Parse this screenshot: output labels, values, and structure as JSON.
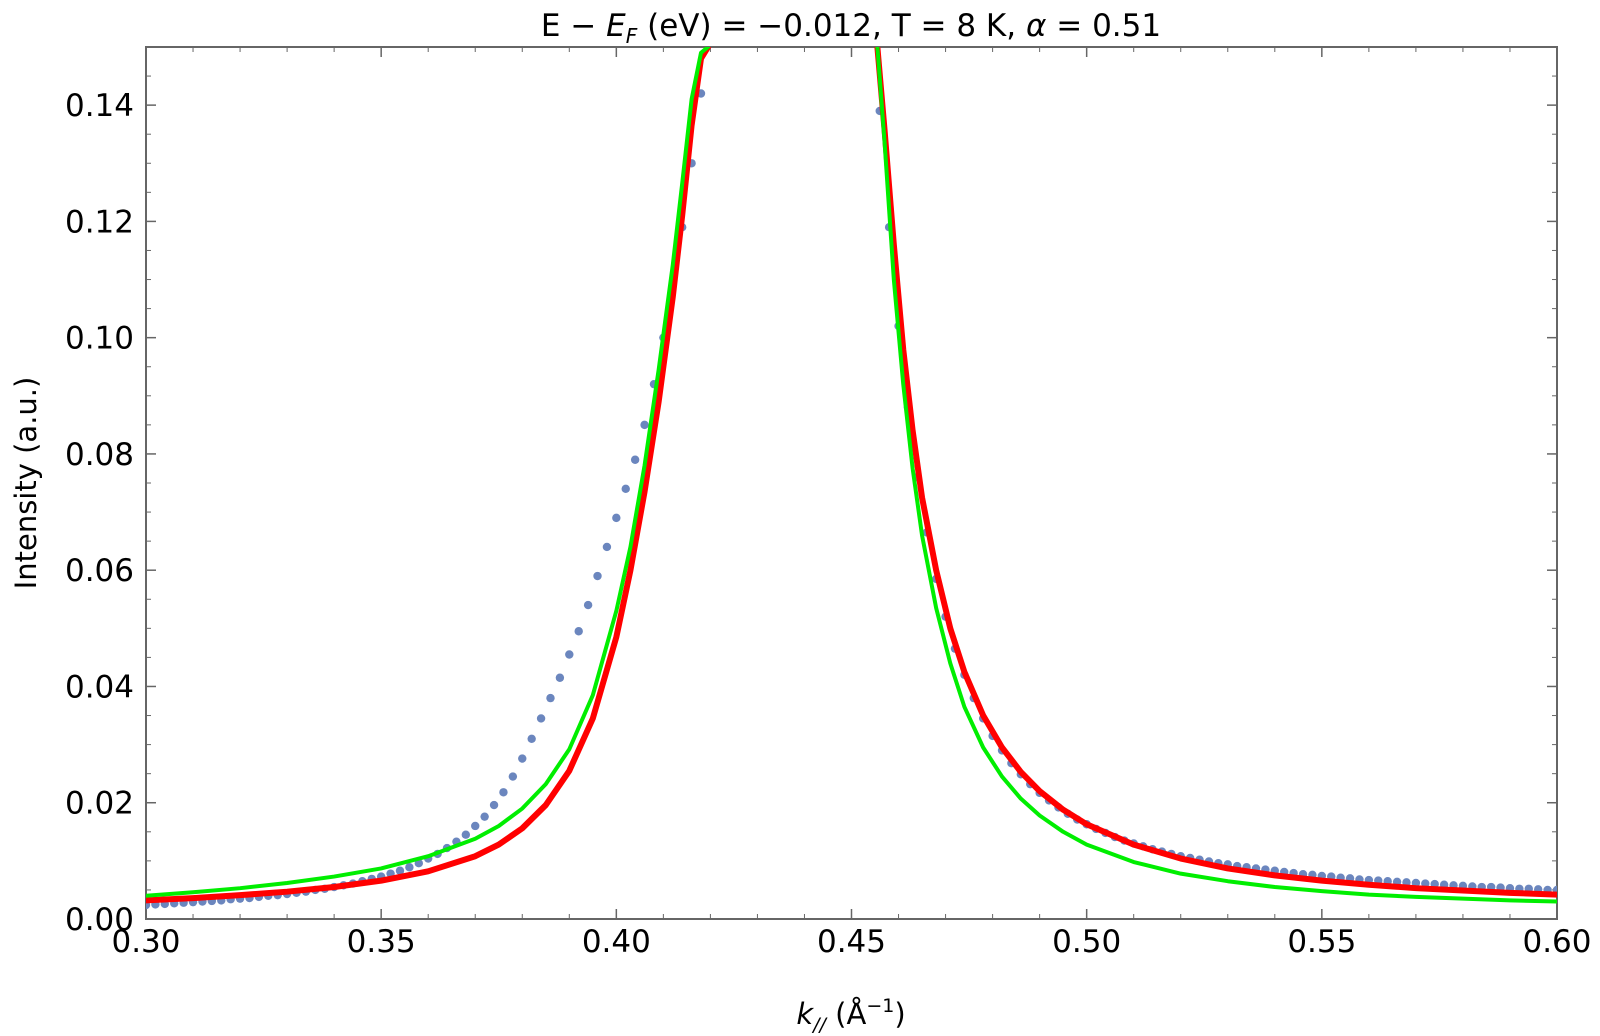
{
  "chart_data": {
    "type": "scatter",
    "title_parts": {
      "a": "E − ",
      "b": "E",
      "c": "F",
      "d": " (eV) = −0.012, T = 8 K, ",
      "e": "α",
      "f": " = 0.51"
    },
    "xlabel_parts": {
      "a": "k",
      "b": "//",
      "c": " (Å",
      "d": "−1",
      "e": ")"
    },
    "ylabel": "Intensity (a.u.)",
    "xlim": [
      0.3,
      0.6
    ],
    "ylim": [
      0.0,
      0.15
    ],
    "x_ticks": [
      {
        "value": 0.3,
        "label": "0.30"
      },
      {
        "value": 0.35,
        "label": "0.35"
      },
      {
        "value": 0.4,
        "label": "0.40"
      },
      {
        "value": 0.45,
        "label": "0.45"
      },
      {
        "value": 0.5,
        "label": "0.50"
      },
      {
        "value": 0.55,
        "label": "0.55"
      },
      {
        "value": 0.6,
        "label": "0.60"
      }
    ],
    "y_ticks": [
      {
        "value": 0.0,
        "label": "0.00"
      },
      {
        "value": 0.02,
        "label": "0.02"
      },
      {
        "value": 0.04,
        "label": "0.04"
      },
      {
        "value": 0.06,
        "label": "0.06"
      },
      {
        "value": 0.08,
        "label": "0.08"
      },
      {
        "value": 0.1,
        "label": "0.10"
      },
      {
        "value": 0.12,
        "label": "0.12"
      },
      {
        "value": 0.14,
        "label": "0.14"
      }
    ],
    "grid": false,
    "colors": {
      "points": "#6b86be",
      "red_curve": "#ff0000",
      "green_curve": "#00ee00",
      "frame": "#666666"
    },
    "series": [
      {
        "kind": "points",
        "x": [
          0.3,
          0.302,
          0.304,
          0.306,
          0.308,
          0.31,
          0.312,
          0.314,
          0.316,
          0.318,
          0.32,
          0.322,
          0.324,
          0.326,
          0.328,
          0.33,
          0.332,
          0.334,
          0.336,
          0.338,
          0.34,
          0.342,
          0.344,
          0.346,
          0.348,
          0.35,
          0.352,
          0.354,
          0.356,
          0.358,
          0.36,
          0.362,
          0.364,
          0.366,
          0.368,
          0.37,
          0.372,
          0.374,
          0.376,
          0.378,
          0.38,
          0.382,
          0.384,
          0.386,
          0.388,
          0.39,
          0.392,
          0.394,
          0.396,
          0.398,
          0.4,
          0.402,
          0.404,
          0.406,
          0.408,
          0.41,
          0.412,
          0.414,
          0.416,
          0.418,
          0.456,
          0.458,
          0.46,
          0.462,
          0.464,
          0.466,
          0.468,
          0.47,
          0.472,
          0.474,
          0.476,
          0.478,
          0.48,
          0.482,
          0.484,
          0.486,
          0.488,
          0.49,
          0.492,
          0.494,
          0.496,
          0.498,
          0.5,
          0.502,
          0.504,
          0.506,
          0.508,
          0.51,
          0.512,
          0.514,
          0.516,
          0.518,
          0.52,
          0.522,
          0.524,
          0.526,
          0.528,
          0.53,
          0.532,
          0.534,
          0.536,
          0.538,
          0.54,
          0.542,
          0.544,
          0.546,
          0.548,
          0.55,
          0.552,
          0.554,
          0.556,
          0.558,
          0.56,
          0.562,
          0.564,
          0.566,
          0.568,
          0.57,
          0.572,
          0.574,
          0.576,
          0.578,
          0.58,
          0.582,
          0.584,
          0.586,
          0.588,
          0.59,
          0.592,
          0.594,
          0.596,
          0.598,
          0.6
        ],
        "y": [
          0.0024,
          0.0025,
          0.0026,
          0.0027,
          0.0028,
          0.0029,
          0.003,
          0.0031,
          0.0032,
          0.0034,
          0.0035,
          0.0036,
          0.0038,
          0.004,
          0.0041,
          0.0043,
          0.0045,
          0.0047,
          0.005,
          0.0052,
          0.0055,
          0.0058,
          0.0061,
          0.0065,
          0.0069,
          0.0073,
          0.0078,
          0.0083,
          0.0089,
          0.0096,
          0.0104,
          0.0112,
          0.0122,
          0.0133,
          0.0145,
          0.016,
          0.0176,
          0.0196,
          0.0218,
          0.0245,
          0.0276,
          0.031,
          0.0345,
          0.038,
          0.0415,
          0.0455,
          0.0495,
          0.054,
          0.059,
          0.064,
          0.069,
          0.074,
          0.079,
          0.085,
          0.092,
          0.1,
          0.109,
          0.119,
          0.13,
          0.142,
          0.139,
          0.119,
          0.102,
          0.088,
          0.076,
          0.0665,
          0.0585,
          0.052,
          0.0465,
          0.042,
          0.038,
          0.0345,
          0.0315,
          0.029,
          0.0268,
          0.0249,
          0.0232,
          0.0217,
          0.0204,
          0.0192,
          0.0181,
          0.0171,
          0.0163,
          0.0155,
          0.0148,
          0.0141,
          0.0135,
          0.013,
          0.0125,
          0.012,
          0.0116,
          0.0112,
          0.0108,
          0.0105,
          0.0102,
          0.0099,
          0.0096,
          0.0094,
          0.0091,
          0.0089,
          0.0087,
          0.0085,
          0.0083,
          0.0081,
          0.0079,
          0.0077,
          0.0076,
          0.0074,
          0.0073,
          0.0071,
          0.007,
          0.0068,
          0.0067,
          0.0066,
          0.0065,
          0.0064,
          0.0063,
          0.0062,
          0.0061,
          0.006,
          0.0059,
          0.0058,
          0.0057,
          0.0056,
          0.0055,
          0.0055,
          0.0054,
          0.0053,
          0.0052,
          0.0052,
          0.0051,
          0.005,
          0.005
        ]
      },
      {
        "kind": "line",
        "color_key": "red_curve",
        "x": [
          0.3,
          0.31,
          0.32,
          0.33,
          0.34,
          0.35,
          0.36,
          0.37,
          0.375,
          0.38,
          0.385,
          0.39,
          0.395,
          0.4,
          0.403,
          0.406,
          0.409,
          0.412,
          0.414,
          0.416,
          0.418,
          0.4195,
          0.4555,
          0.457,
          0.459,
          0.461,
          0.463,
          0.465,
          0.468,
          0.471,
          0.474,
          0.478,
          0.482,
          0.486,
          0.49,
          0.495,
          0.5,
          0.51,
          0.52,
          0.53,
          0.54,
          0.55,
          0.56,
          0.57,
          0.58,
          0.59,
          0.6
        ],
        "y": [
          0.0032,
          0.0036,
          0.0041,
          0.0047,
          0.0055,
          0.0066,
          0.0082,
          0.0108,
          0.0128,
          0.0156,
          0.0196,
          0.0255,
          0.0345,
          0.0485,
          0.06,
          0.0735,
          0.089,
          0.107,
          0.121,
          0.1365,
          0.148,
          0.15,
          0.15,
          0.136,
          0.116,
          0.098,
          0.084,
          0.0725,
          0.06,
          0.05,
          0.0425,
          0.035,
          0.0295,
          0.0253,
          0.022,
          0.0188,
          0.0163,
          0.0128,
          0.0104,
          0.0087,
          0.0075,
          0.0066,
          0.0059,
          0.0053,
          0.0049,
          0.0045,
          0.0042
        ]
      },
      {
        "kind": "line",
        "color_key": "green_curve",
        "x": [
          0.3,
          0.31,
          0.32,
          0.33,
          0.34,
          0.35,
          0.36,
          0.37,
          0.375,
          0.38,
          0.385,
          0.39,
          0.395,
          0.4,
          0.403,
          0.406,
          0.409,
          0.412,
          0.414,
          0.416,
          0.418,
          0.4195,
          0.4555,
          0.457,
          0.459,
          0.461,
          0.463,
          0.465,
          0.468,
          0.471,
          0.474,
          0.478,
          0.482,
          0.486,
          0.49,
          0.495,
          0.5,
          0.51,
          0.52,
          0.53,
          0.54,
          0.55,
          0.56,
          0.57,
          0.58,
          0.59,
          0.6
        ],
        "y": [
          0.004,
          0.0046,
          0.0053,
          0.0062,
          0.0073,
          0.0087,
          0.0108,
          0.0138,
          0.016,
          0.019,
          0.0232,
          0.0292,
          0.0385,
          0.053,
          0.064,
          0.078,
          0.0945,
          0.1125,
          0.1265,
          0.141,
          0.149,
          0.15,
          0.15,
          0.134,
          0.11,
          0.092,
          0.0775,
          0.066,
          0.0535,
          0.044,
          0.0365,
          0.0295,
          0.0245,
          0.0207,
          0.0178,
          0.015,
          0.0128,
          0.0098,
          0.0078,
          0.0065,
          0.0055,
          0.0048,
          0.0042,
          0.0038,
          0.0035,
          0.0032,
          0.003
        ]
      }
    ]
  }
}
